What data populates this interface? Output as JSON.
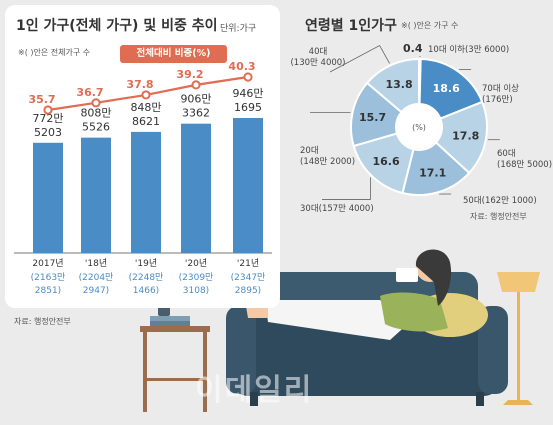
{
  "left_chart": {
    "title": "1인 가구(전체 가구) 및 비중 추이",
    "unit": "단위:가구",
    "note": "※( )안은 전체가구 수",
    "badge": "전체대비 비중(%)",
    "source": "자료: 행정안전부"
  },
  "right_chart": {
    "title": "연령별 1인가구",
    "note": "※( )안은 가구 수",
    "source": "자료: 행정안전부",
    "center_label": "(%)"
  },
  "watermark": "이데일리",
  "colors": {
    "bar": "#4a8dc6",
    "line": "#e06c52",
    "pie_highlight": "#4a8dc6",
    "pie_light": "#b9d3e6",
    "pie_mid": "#9cbfdb"
  },
  "chart_data": [
    {
      "type": "bar",
      "categories": [
        "2017년",
        "'18년",
        "'19년",
        "'20년",
        "'21년"
      ],
      "series": [
        {
          "name": "1인 가구",
          "values": [
            7725203,
            8085526,
            8488621,
            9063362,
            9461695
          ]
        },
        {
          "name": "전체대비 비중(%)",
          "values": [
            35.7,
            36.7,
            37.8,
            39.2,
            40.3
          ]
        }
      ],
      "bar_labels": [
        [
          "772만",
          "5203"
        ],
        [
          "808만",
          "5526"
        ],
        [
          "848만",
          "8621"
        ],
        [
          "906만",
          "3362"
        ],
        [
          "946만",
          "1695"
        ]
      ],
      "pct_labels": [
        "35.7",
        "36.7",
        "37.8",
        "39.2",
        "40.3"
      ],
      "total_labels": [
        [
          "(2163만",
          "2851)"
        ],
        [
          "(2204만",
          "2947)"
        ],
        [
          "(2248만",
          "1466)"
        ],
        [
          "(2309만",
          "3108)"
        ],
        [
          "(2347만",
          "2895)"
        ]
      ]
    },
    {
      "type": "pie",
      "slices": [
        {
          "value": 0.4,
          "label": "0.4",
          "outer": [
            "10대 이하(3만 6000)"
          ]
        },
        {
          "value": 18.6,
          "label": "18.6",
          "outer": [
            "70대 이상",
            "(176만)"
          ]
        },
        {
          "value": 17.8,
          "label": "17.8",
          "outer": [
            "60대",
            "(168만 5000)"
          ]
        },
        {
          "value": 17.1,
          "label": "17.1",
          "outer": [
            "50대(162만 1000)"
          ]
        },
        {
          "value": 16.6,
          "label": "16.6",
          "outer": [
            "30대(157만 4000)"
          ]
        },
        {
          "value": 15.7,
          "label": "15.7",
          "outer": [
            "20대",
            "(148만 2000)"
          ]
        },
        {
          "value": 13.8,
          "label": "13.8",
          "outer": [
            "40대",
            "(130만 4000)"
          ]
        }
      ]
    }
  ]
}
